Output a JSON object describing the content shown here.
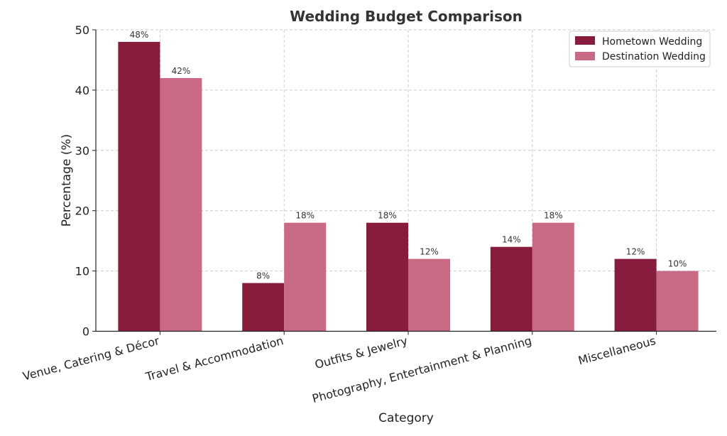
{
  "chart_data": {
    "type": "bar",
    "title": "Wedding Budget Comparison",
    "xlabel": "Category",
    "ylabel": "Percentage (%)",
    "ylim": [
      0,
      50
    ],
    "yticks": [
      0,
      10,
      20,
      30,
      40,
      50
    ],
    "categories": [
      "Venue, Catering & Décor",
      "Travel & Accommodation",
      "Outfits & Jewelry",
      "Photography, Entertainment & Planning",
      "Miscellaneous"
    ],
    "series": [
      {
        "name": "Hometown Wedding",
        "color": "#881c3c",
        "values": [
          48,
          8,
          18,
          14,
          12
        ],
        "labels": [
          "48%",
          "8%",
          "18%",
          "14%",
          "12%"
        ]
      },
      {
        "name": "Destination Wedding",
        "color": "#c96a84",
        "values": [
          42,
          18,
          12,
          18,
          10
        ],
        "labels": [
          "42%",
          "18%",
          "12%",
          "18%",
          "10%"
        ]
      }
    ],
    "grid": true,
    "legend_position": "top-right"
  }
}
